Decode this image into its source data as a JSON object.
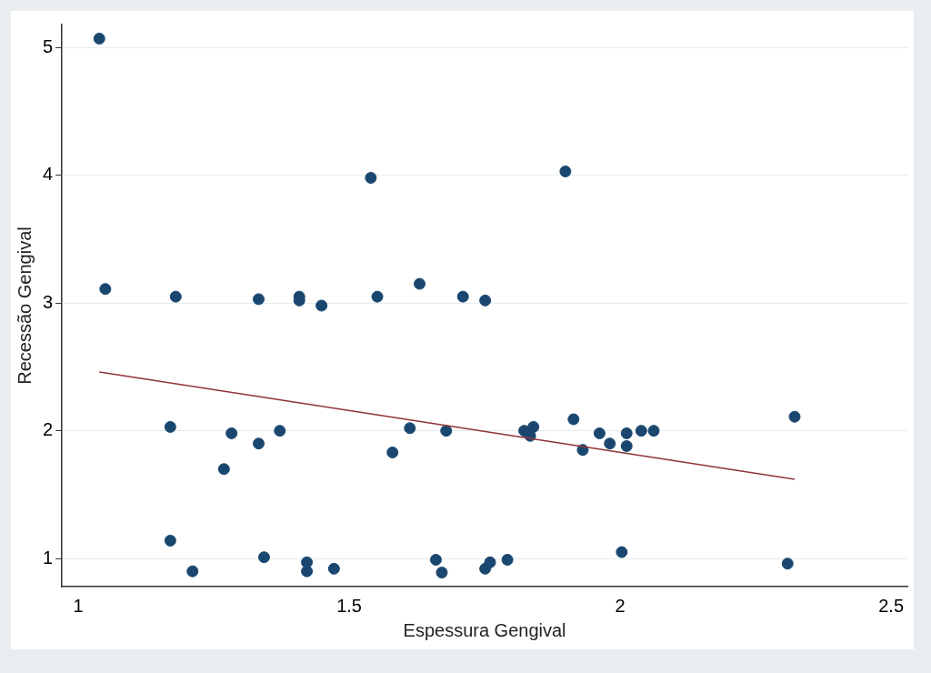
{
  "chart_data": {
    "type": "scatter",
    "x_label": "Espessura Gengival",
    "y_label": "Recessão Gengival",
    "xlim": [
      0.97,
      2.53
    ],
    "xticks": [
      1,
      1.5,
      2,
      2.5
    ],
    "ylim": [
      0.78,
      5.18
    ],
    "yticks": [
      1,
      2,
      3,
      4,
      5
    ],
    "grid": "y",
    "series": [
      {
        "type": "scatter",
        "color": "#1a476f",
        "marker": "circle",
        "x": [
          1.039,
          1.05,
          1.18,
          1.333,
          1.408,
          1.408,
          1.449,
          1.54,
          1.552,
          1.63,
          1.71,
          1.751,
          1.899,
          1.17,
          1.283,
          1.372,
          1.333,
          1.269,
          1.58,
          1.612,
          1.679,
          1.823,
          1.834,
          1.84,
          1.914,
          1.931,
          1.962,
          1.981,
          2.012,
          2.012,
          2.039,
          2.062,
          2.322,
          1.17,
          1.211,
          1.343,
          1.422,
          1.422,
          1.472,
          1.66,
          1.671,
          1.751,
          1.76,
          1.792,
          2.003,
          2.309
        ],
        "values": [
          5.07,
          3.11,
          3.05,
          3.03,
          3.05,
          3.02,
          2.98,
          3.98,
          3.05,
          3.15,
          3.05,
          3.02,
          4.03,
          2.03,
          1.98,
          2.0,
          1.9,
          1.7,
          1.83,
          2.02,
          2.0,
          2.0,
          1.96,
          2.03,
          2.09,
          1.85,
          1.98,
          1.9,
          1.88,
          1.98,
          2.0,
          2.0,
          2.11,
          1.14,
          0.9,
          1.01,
          0.97,
          0.9,
          0.92,
          0.99,
          0.89,
          0.92,
          0.97,
          0.99,
          1.05,
          0.96
        ]
      },
      {
        "type": "line",
        "color": "#90353b",
        "line_style": "solid",
        "x": [
          1.039,
          2.322
        ],
        "values": [
          2.46,
          1.62
        ]
      }
    ]
  }
}
